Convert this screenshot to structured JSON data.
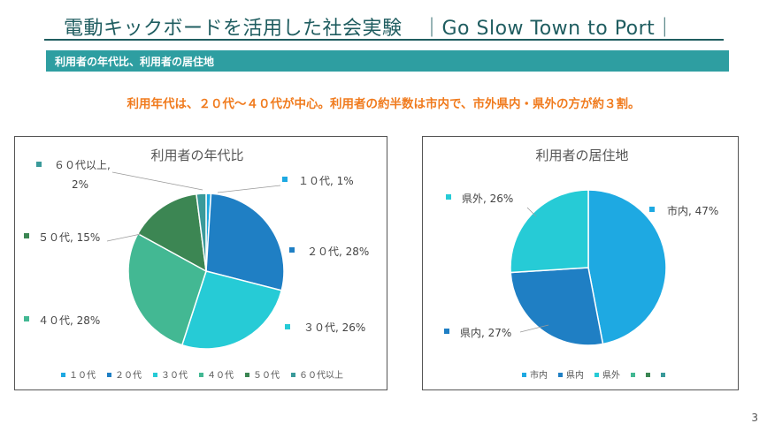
{
  "header": {
    "title": "電動キックボードを活用した社会実験　｜Go Slow Town to Port｜",
    "section": "利用者の年代比、利用者の居住地",
    "summary": "利用年代は、２０代～４０代が中心。利用者の約半数は市内で、市外県内・県外の方が約３割。"
  },
  "page_number": "3",
  "chart_data": [
    {
      "type": "pie",
      "title": "利用者の年代比",
      "categories": [
        "１０代",
        "２０代",
        "３０代",
        "４０代",
        "５０代",
        "６０代以上"
      ],
      "values": [
        1,
        28,
        26,
        28,
        15,
        2
      ],
      "colors": [
        "#1ea9e2",
        "#1f7fc4",
        "#26cbd6",
        "#43b893",
        "#3c8653",
        "#3a9a9a"
      ],
      "data_labels": [
        "１０代, 1%",
        "２０代, 28%",
        "３０代, 26%",
        "４０代, 28%",
        "５０代, 15%",
        "６０代以上,|2%"
      ],
      "legend": [
        "１０代",
        "２０代",
        "３０代",
        "４０代",
        "５０代",
        "６０代以上"
      ],
      "legend_position": "bottom"
    },
    {
      "type": "pie",
      "title": "利用者の居住地",
      "categories": [
        "市内",
        "県内",
        "県外"
      ],
      "values": [
        47,
        27,
        26
      ],
      "colors": [
        "#1ea9e2",
        "#1f7fc4",
        "#26cbd6",
        "#43b893",
        "#3c8653",
        "#3a9a9a"
      ],
      "data_labels": [
        "市内, 47%",
        "県内, 27%",
        "県外, 26%"
      ],
      "legend": [
        "市内",
        "県内",
        "県外",
        "",
        "",
        ""
      ],
      "legend_position": "bottom"
    }
  ]
}
